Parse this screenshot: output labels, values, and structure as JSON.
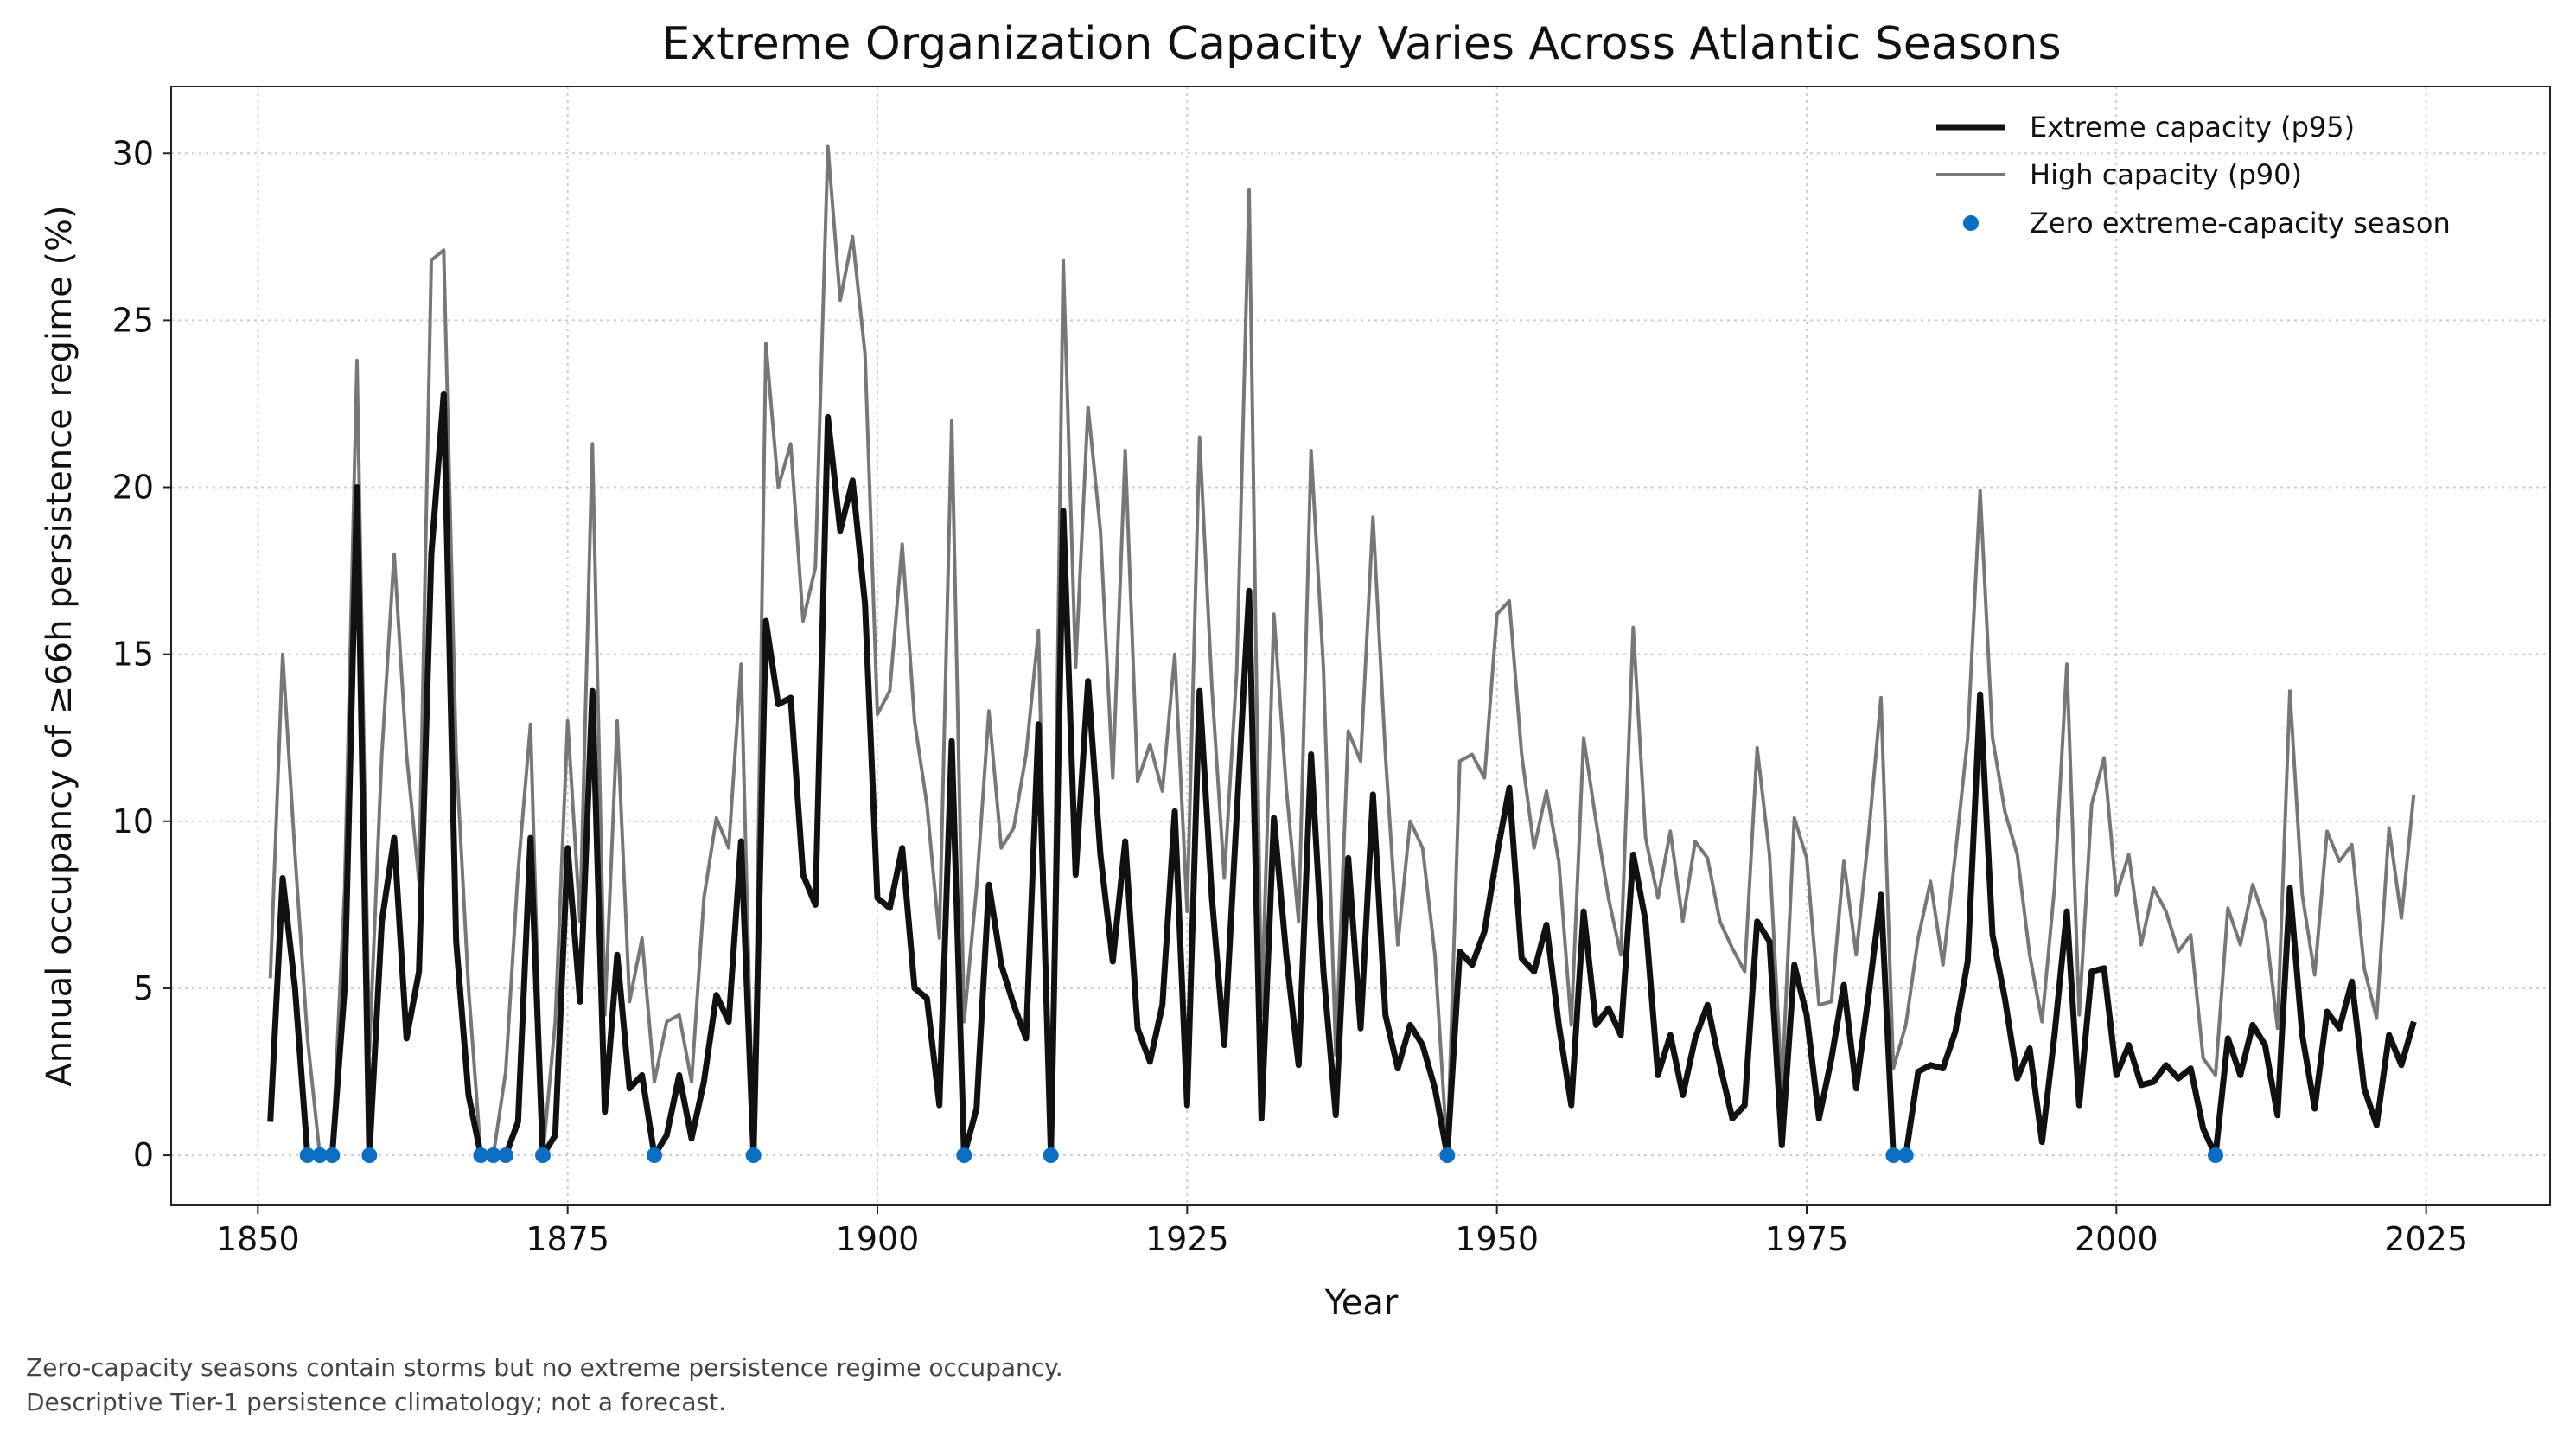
{
  "chart_data": {
    "type": "line",
    "title": "Extreme Organization Capacity Varies Across Atlantic Seasons",
    "xlabel": "Year",
    "ylabel": "Annual occupancy of ≥66h persistence regime (%)",
    "xlim": [
      1843,
      2035
    ],
    "ylim": [
      -1.5,
      32
    ],
    "xticks": [
      1850,
      1875,
      1900,
      1925,
      1950,
      1975,
      2000,
      2025
    ],
    "yticks": [
      0,
      5,
      10,
      15,
      20,
      25,
      30
    ],
    "grid": true,
    "legend_position": "top-right",
    "x_start": 1851,
    "series": [
      {
        "name": "Extreme capacity (p95)",
        "color": "#111111",
        "values": [
          1.0,
          8.3,
          5.0,
          0,
          0,
          0,
          5.0,
          20.0,
          0,
          7.0,
          9.5,
          3.5,
          5.5,
          18.0,
          22.8,
          6.4,
          1.8,
          0,
          0,
          0,
          1.0,
          9.5,
          0,
          0.6,
          9.2,
          4.6,
          13.9,
          1.3,
          6.0,
          2.0,
          2.4,
          0,
          0.6,
          2.4,
          0.5,
          2.2,
          4.8,
          4.0,
          9.4,
          0,
          16.0,
          13.5,
          13.7,
          8.4,
          7.5,
          22.1,
          18.7,
          20.2,
          16.5,
          7.7,
          7.4,
          9.2,
          5.0,
          4.7,
          1.5,
          12.4,
          0,
          1.4,
          8.1,
          5.7,
          4.5,
          3.5,
          12.9,
          0,
          19.3,
          8.4,
          14.2,
          9.0,
          5.8,
          9.4,
          3.8,
          2.8,
          4.5,
          10.3,
          1.5,
          13.9,
          7.7,
          3.3,
          10.2,
          16.9,
          1.1,
          10.1,
          6.0,
          2.7,
          12.0,
          5.5,
          1.2,
          8.9,
          3.8,
          10.8,
          4.2,
          2.6,
          3.9,
          3.3,
          2.0,
          0,
          6.1,
          5.7,
          6.7,
          9.0,
          11.0,
          5.9,
          5.5,
          6.9,
          3.9,
          1.5,
          7.3,
          3.9,
          4.4,
          3.6,
          9.0,
          7.0,
          2.4,
          3.6,
          1.8,
          3.5,
          4.5,
          2.7,
          1.1,
          1.5,
          7.0,
          6.4,
          0.3,
          5.7,
          4.2,
          1.1,
          2.9,
          5.1,
          2.0,
          4.8,
          7.8,
          0,
          0,
          2.5,
          2.7,
          2.6,
          3.7,
          5.8,
          13.8,
          6.6,
          4.7,
          2.3,
          3.2,
          0.4,
          3.6,
          7.3,
          1.5,
          5.5,
          5.6,
          2.4,
          3.3,
          2.1,
          2.2,
          2.7,
          2.3,
          2.6,
          0.8,
          0,
          3.5,
          2.4,
          3.9,
          3.3,
          1.2,
          8.0,
          3.6,
          1.4,
          4.3,
          3.8,
          5.2,
          2.0,
          0.9,
          3.6,
          2.7,
          4.0
        ]
      },
      {
        "name": "High capacity (p90)",
        "color": "#777777",
        "values": [
          5.3,
          15.0,
          9.0,
          3.5,
          0,
          0,
          8.0,
          23.8,
          3.1,
          12.0,
          18.0,
          12.0,
          8.2,
          26.8,
          27.1,
          12.0,
          5.0,
          0,
          0,
          2.5,
          8.5,
          12.9,
          0,
          4.0,
          13.0,
          7.0,
          21.3,
          4.2,
          13.0,
          4.6,
          6.5,
          2.2,
          4.0,
          4.2,
          2.2,
          7.7,
          10.1,
          9.2,
          14.7,
          0,
          24.3,
          20.0,
          21.3,
          16.0,
          17.6,
          30.2,
          25.6,
          27.5,
          24.0,
          13.2,
          13.9,
          18.3,
          13.0,
          10.5,
          6.5,
          22.0,
          4.0,
          8.0,
          13.3,
          9.2,
          9.8,
          12.0,
          15.7,
          0,
          26.8,
          14.6,
          22.4,
          18.7,
          11.3,
          21.1,
          11.2,
          12.3,
          10.9,
          15.0,
          7.3,
          21.5,
          14.0,
          8.3,
          14.5,
          28.9,
          4.2,
          16.2,
          11.0,
          7.0,
          21.1,
          14.6,
          3.0,
          12.7,
          11.8,
          19.1,
          12.0,
          6.3,
          10.0,
          9.2,
          6.0,
          0,
          11.8,
          12.0,
          11.3,
          16.2,
          16.6,
          12.0,
          9.2,
          10.9,
          8.8,
          3.9,
          12.5,
          10.0,
          7.7,
          6.0,
          15.8,
          9.5,
          7.7,
          9.7,
          7.0,
          9.4,
          8.9,
          7.0,
          6.2,
          5.5,
          12.2,
          9.0,
          2.0,
          10.1,
          8.9,
          4.5,
          4.6,
          8.8,
          6.0,
          9.6,
          13.7,
          2.6,
          3.9,
          6.5,
          8.2,
          5.7,
          9.0,
          12.5,
          19.9,
          12.5,
          10.3,
          9.0,
          6.0,
          4.0,
          8.0,
          14.7,
          4.2,
          10.5,
          11.9,
          7.8,
          9.0,
          6.3,
          8.0,
          7.3,
          6.1,
          6.6,
          2.9,
          2.4,
          7.4,
          6.3,
          8.1,
          7.0,
          3.8,
          13.9,
          7.8,
          5.4,
          9.7,
          8.8,
          9.3,
          5.6,
          4.1,
          9.8,
          7.1,
          10.8
        ]
      }
    ],
    "zero_marker_series": {
      "name": "Zero extreme-capacity season",
      "color": "#0a6fc2",
      "x": [
        1854,
        1855,
        1856,
        1859,
        1868,
        1869,
        1870,
        1873,
        1882,
        1890,
        1907,
        1914,
        1946,
        1982,
        1983,
        2008
      ],
      "y": [
        0,
        0,
        0,
        0,
        0,
        0,
        0,
        0,
        0,
        0,
        0,
        0,
        0,
        0,
        0,
        0
      ]
    }
  },
  "footnotes": {
    "line1": "Zero-capacity seasons contain storms but no extreme persistence regime occupancy.",
    "line2": "Descriptive Tier-1 persistence climatology; not a forecast."
  }
}
